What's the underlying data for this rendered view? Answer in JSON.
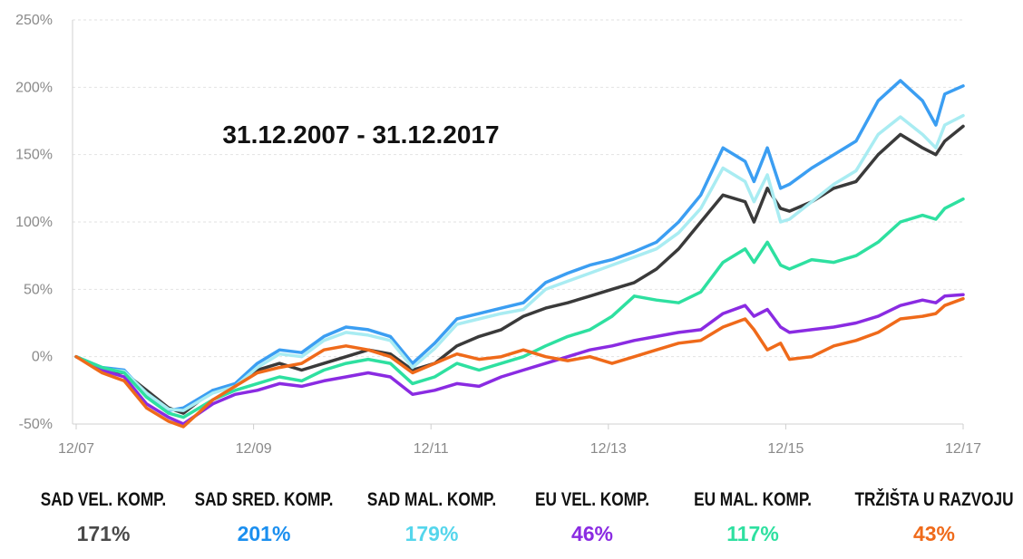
{
  "chart_data": {
    "type": "line",
    "annotation": "31.12.2007 - 31.12.2017",
    "xlim": [
      2007.917,
      2017.958
    ],
    "ylim": [
      -50,
      250
    ],
    "y_ticks": [
      -50,
      0,
      50,
      100,
      150,
      200,
      250
    ],
    "y_tick_labels": [
      "-50%",
      "0%",
      "50%",
      "100%",
      "150%",
      "200%",
      "250%"
    ],
    "x_ticks": [
      2007.958,
      2009.958,
      2011.958,
      2013.958,
      2015.958,
      2017.958
    ],
    "x_tick_labels": [
      "12/07",
      "12/09",
      "12/11",
      "12/13",
      "12/15",
      "12/17"
    ],
    "grid": "horizontal",
    "legend_position": "bottom",
    "series": [
      {
        "name": "SAD VEL. KOMP.",
        "final_label": "171%",
        "color": "#3a3a3a",
        "label_color": "#4a4a4a",
        "points": [
          [
            2007.958,
            0
          ],
          [
            2008.25,
            -10
          ],
          [
            2008.5,
            -12
          ],
          [
            2008.75,
            -25
          ],
          [
            2009.0,
            -38
          ],
          [
            2009.167,
            -42
          ],
          [
            2009.5,
            -25
          ],
          [
            2009.75,
            -22
          ],
          [
            2010.0,
            -10
          ],
          [
            2010.25,
            -5
          ],
          [
            2010.5,
            -10
          ],
          [
            2010.75,
            -5
          ],
          [
            2011.0,
            0
          ],
          [
            2011.25,
            5
          ],
          [
            2011.5,
            2
          ],
          [
            2011.75,
            -10
          ],
          [
            2012.0,
            -5
          ],
          [
            2012.25,
            8
          ],
          [
            2012.5,
            15
          ],
          [
            2012.75,
            20
          ],
          [
            2013.0,
            30
          ],
          [
            2013.25,
            36
          ],
          [
            2013.5,
            40
          ],
          [
            2013.75,
            45
          ],
          [
            2014.0,
            50
          ],
          [
            2014.25,
            55
          ],
          [
            2014.5,
            65
          ],
          [
            2014.75,
            80
          ],
          [
            2015.0,
            100
          ],
          [
            2015.25,
            120
          ],
          [
            2015.5,
            115
          ],
          [
            2015.6,
            100
          ],
          [
            2015.75,
            125
          ],
          [
            2015.9,
            110
          ],
          [
            2016.0,
            108
          ],
          [
            2016.25,
            115
          ],
          [
            2016.5,
            125
          ],
          [
            2016.75,
            130
          ],
          [
            2017.0,
            150
          ],
          [
            2017.25,
            165
          ],
          [
            2017.5,
            155
          ],
          [
            2017.65,
            150
          ],
          [
            2017.75,
            160
          ],
          [
            2017.958,
            171
          ]
        ]
      },
      {
        "name": "SAD SRED. KOMP.",
        "final_label": "201%",
        "color": "#3b9ef2",
        "label_color": "#1b8fef",
        "points": [
          [
            2007.958,
            0
          ],
          [
            2008.25,
            -8
          ],
          [
            2008.5,
            -10
          ],
          [
            2008.75,
            -28
          ],
          [
            2009.0,
            -40
          ],
          [
            2009.167,
            -38
          ],
          [
            2009.5,
            -25
          ],
          [
            2009.75,
            -20
          ],
          [
            2010.0,
            -5
          ],
          [
            2010.25,
            5
          ],
          [
            2010.5,
            3
          ],
          [
            2010.75,
            15
          ],
          [
            2011.0,
            22
          ],
          [
            2011.25,
            20
          ],
          [
            2011.5,
            15
          ],
          [
            2011.75,
            -5
          ],
          [
            2012.0,
            10
          ],
          [
            2012.25,
            28
          ],
          [
            2012.5,
            32
          ],
          [
            2012.75,
            36
          ],
          [
            2013.0,
            40
          ],
          [
            2013.25,
            55
          ],
          [
            2013.5,
            62
          ],
          [
            2013.75,
            68
          ],
          [
            2014.0,
            72
          ],
          [
            2014.25,
            78
          ],
          [
            2014.5,
            85
          ],
          [
            2014.75,
            100
          ],
          [
            2015.0,
            120
          ],
          [
            2015.25,
            155
          ],
          [
            2015.5,
            145
          ],
          [
            2015.6,
            130
          ],
          [
            2015.75,
            155
          ],
          [
            2015.9,
            125
          ],
          [
            2016.0,
            128
          ],
          [
            2016.25,
            140
          ],
          [
            2016.5,
            150
          ],
          [
            2016.75,
            160
          ],
          [
            2017.0,
            190
          ],
          [
            2017.25,
            205
          ],
          [
            2017.5,
            190
          ],
          [
            2017.65,
            172
          ],
          [
            2017.75,
            195
          ],
          [
            2017.958,
            201
          ]
        ]
      },
      {
        "name": "SAD MAL. KOMP.",
        "final_label": "179%",
        "color": "#a9ecf2",
        "label_color": "#55d6ec",
        "points": [
          [
            2007.958,
            0
          ],
          [
            2008.25,
            -9
          ],
          [
            2008.5,
            -11
          ],
          [
            2008.75,
            -27
          ],
          [
            2009.0,
            -39
          ],
          [
            2009.167,
            -40
          ],
          [
            2009.5,
            -27
          ],
          [
            2009.75,
            -22
          ],
          [
            2010.0,
            -8
          ],
          [
            2010.25,
            2
          ],
          [
            2010.5,
            0
          ],
          [
            2010.75,
            12
          ],
          [
            2011.0,
            18
          ],
          [
            2011.25,
            16
          ],
          [
            2011.5,
            12
          ],
          [
            2011.75,
            -8
          ],
          [
            2012.0,
            6
          ],
          [
            2012.25,
            24
          ],
          [
            2012.5,
            28
          ],
          [
            2012.75,
            32
          ],
          [
            2013.0,
            35
          ],
          [
            2013.25,
            50
          ],
          [
            2013.5,
            56
          ],
          [
            2013.75,
            62
          ],
          [
            2014.0,
            68
          ],
          [
            2014.25,
            74
          ],
          [
            2014.5,
            80
          ],
          [
            2014.75,
            92
          ],
          [
            2015.0,
            110
          ],
          [
            2015.25,
            140
          ],
          [
            2015.5,
            130
          ],
          [
            2015.6,
            115
          ],
          [
            2015.75,
            135
          ],
          [
            2015.9,
            100
          ],
          [
            2016.0,
            102
          ],
          [
            2016.25,
            115
          ],
          [
            2016.5,
            128
          ],
          [
            2016.75,
            138
          ],
          [
            2017.0,
            165
          ],
          [
            2017.25,
            178
          ],
          [
            2017.5,
            165
          ],
          [
            2017.65,
            155
          ],
          [
            2017.75,
            172
          ],
          [
            2017.958,
            179
          ]
        ]
      },
      {
        "name": "EU VEL. KOMP.",
        "final_label": "46%",
        "color": "#8a2be2",
        "label_color": "#8a2be2",
        "points": [
          [
            2007.958,
            0
          ],
          [
            2008.25,
            -10
          ],
          [
            2008.5,
            -15
          ],
          [
            2008.75,
            -35
          ],
          [
            2009.0,
            -45
          ],
          [
            2009.167,
            -50
          ],
          [
            2009.5,
            -35
          ],
          [
            2009.75,
            -28
          ],
          [
            2010.0,
            -25
          ],
          [
            2010.25,
            -20
          ],
          [
            2010.5,
            -22
          ],
          [
            2010.75,
            -18
          ],
          [
            2011.0,
            -15
          ],
          [
            2011.25,
            -12
          ],
          [
            2011.5,
            -15
          ],
          [
            2011.75,
            -28
          ],
          [
            2012.0,
            -25
          ],
          [
            2012.25,
            -20
          ],
          [
            2012.5,
            -22
          ],
          [
            2012.75,
            -15
          ],
          [
            2013.0,
            -10
          ],
          [
            2013.25,
            -5
          ],
          [
            2013.5,
            0
          ],
          [
            2013.75,
            5
          ],
          [
            2014.0,
            8
          ],
          [
            2014.25,
            12
          ],
          [
            2014.5,
            15
          ],
          [
            2014.75,
            18
          ],
          [
            2015.0,
            20
          ],
          [
            2015.25,
            32
          ],
          [
            2015.5,
            38
          ],
          [
            2015.6,
            30
          ],
          [
            2015.75,
            35
          ],
          [
            2015.9,
            22
          ],
          [
            2016.0,
            18
          ],
          [
            2016.25,
            20
          ],
          [
            2016.5,
            22
          ],
          [
            2016.75,
            25
          ],
          [
            2017.0,
            30
          ],
          [
            2017.25,
            38
          ],
          [
            2017.5,
            42
          ],
          [
            2017.65,
            40
          ],
          [
            2017.75,
            45
          ],
          [
            2017.958,
            46
          ]
        ]
      },
      {
        "name": "EU MAL. KOMP.",
        "final_label": "117%",
        "color": "#2ee0a0",
        "label_color": "#2ee0a0",
        "points": [
          [
            2007.958,
            0
          ],
          [
            2008.25,
            -8
          ],
          [
            2008.5,
            -12
          ],
          [
            2008.75,
            -30
          ],
          [
            2009.0,
            -42
          ],
          [
            2009.167,
            -45
          ],
          [
            2009.5,
            -32
          ],
          [
            2009.75,
            -25
          ],
          [
            2010.0,
            -20
          ],
          [
            2010.25,
            -15
          ],
          [
            2010.5,
            -18
          ],
          [
            2010.75,
            -10
          ],
          [
            2011.0,
            -5
          ],
          [
            2011.25,
            -2
          ],
          [
            2011.5,
            -5
          ],
          [
            2011.75,
            -20
          ],
          [
            2012.0,
            -15
          ],
          [
            2012.25,
            -5
          ],
          [
            2012.5,
            -10
          ],
          [
            2012.75,
            -5
          ],
          [
            2013.0,
            0
          ],
          [
            2013.25,
            8
          ],
          [
            2013.5,
            15
          ],
          [
            2013.75,
            20
          ],
          [
            2014.0,
            30
          ],
          [
            2014.25,
            45
          ],
          [
            2014.5,
            42
          ],
          [
            2014.75,
            40
          ],
          [
            2015.0,
            48
          ],
          [
            2015.25,
            70
          ],
          [
            2015.5,
            80
          ],
          [
            2015.6,
            70
          ],
          [
            2015.75,
            85
          ],
          [
            2015.9,
            68
          ],
          [
            2016.0,
            65
          ],
          [
            2016.25,
            72
          ],
          [
            2016.5,
            70
          ],
          [
            2016.75,
            75
          ],
          [
            2017.0,
            85
          ],
          [
            2017.25,
            100
          ],
          [
            2017.5,
            105
          ],
          [
            2017.65,
            102
          ],
          [
            2017.75,
            110
          ],
          [
            2017.958,
            117
          ]
        ]
      },
      {
        "name": "TRŽIŠTA U RAZVOJU",
        "final_label": "43%",
        "color": "#ef6a1a",
        "label_color": "#ef6a1a",
        "points": [
          [
            2007.958,
            0
          ],
          [
            2008.25,
            -12
          ],
          [
            2008.5,
            -18
          ],
          [
            2008.75,
            -38
          ],
          [
            2009.0,
            -48
          ],
          [
            2009.167,
            -52
          ],
          [
            2009.5,
            -32
          ],
          [
            2009.75,
            -22
          ],
          [
            2010.0,
            -12
          ],
          [
            2010.25,
            -8
          ],
          [
            2010.5,
            -5
          ],
          [
            2010.75,
            5
          ],
          [
            2011.0,
            8
          ],
          [
            2011.25,
            5
          ],
          [
            2011.5,
            0
          ],
          [
            2011.75,
            -12
          ],
          [
            2012.0,
            -5
          ],
          [
            2012.25,
            2
          ],
          [
            2012.5,
            -2
          ],
          [
            2012.75,
            0
          ],
          [
            2013.0,
            5
          ],
          [
            2013.25,
            0
          ],
          [
            2013.5,
            -3
          ],
          [
            2013.75,
            0
          ],
          [
            2014.0,
            -5
          ],
          [
            2014.25,
            0
          ],
          [
            2014.5,
            5
          ],
          [
            2014.75,
            10
          ],
          [
            2015.0,
            12
          ],
          [
            2015.25,
            22
          ],
          [
            2015.5,
            28
          ],
          [
            2015.6,
            20
          ],
          [
            2015.75,
            5
          ],
          [
            2015.9,
            10
          ],
          [
            2016.0,
            -2
          ],
          [
            2016.25,
            0
          ],
          [
            2016.5,
            8
          ],
          [
            2016.75,
            12
          ],
          [
            2017.0,
            18
          ],
          [
            2017.25,
            28
          ],
          [
            2017.5,
            30
          ],
          [
            2017.65,
            32
          ],
          [
            2017.75,
            38
          ],
          [
            2017.958,
            43
          ]
        ]
      }
    ]
  }
}
